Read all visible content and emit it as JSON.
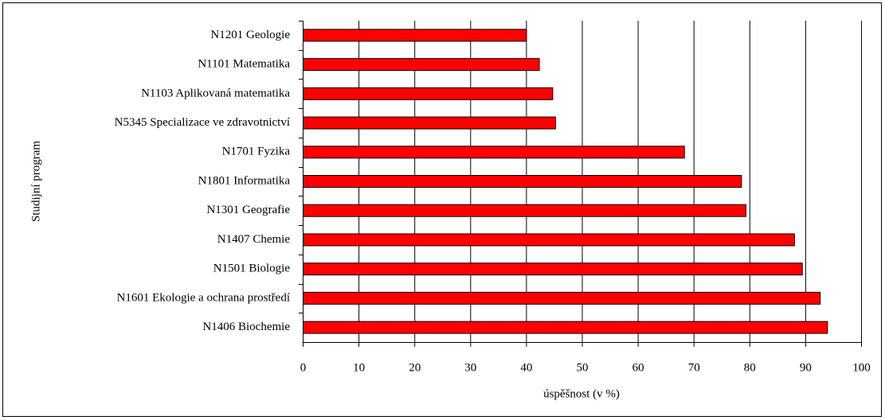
{
  "chart_data": {
    "type": "bar",
    "orientation": "horizontal",
    "categories": [
      "N1201 Geologie",
      "N1101 Matematika",
      "N1103 Aplikovaná matematika",
      "N5345 Specializace ve zdravotnictví",
      "N1701 Fyzika",
      "N1801 Informatika",
      "N1301 Geografie",
      "N1407 Chemie",
      "N1501 Biologie",
      "N1601 Ekologie a ochrana prostředí",
      "N1406 Biochemie"
    ],
    "values": [
      40,
      42.3,
      44.7,
      45.2,
      68.3,
      78.5,
      79.3,
      88.0,
      89.4,
      92.6,
      93.9
    ],
    "color": "#ff0000",
    "x_label": "úspěšnost (v %)",
    "y_label": "Studijní program",
    "xlim": [
      0,
      100
    ],
    "xticks": [
      0,
      10,
      20,
      30,
      40,
      50,
      60,
      70,
      80,
      90,
      100
    ],
    "grid": true
  }
}
